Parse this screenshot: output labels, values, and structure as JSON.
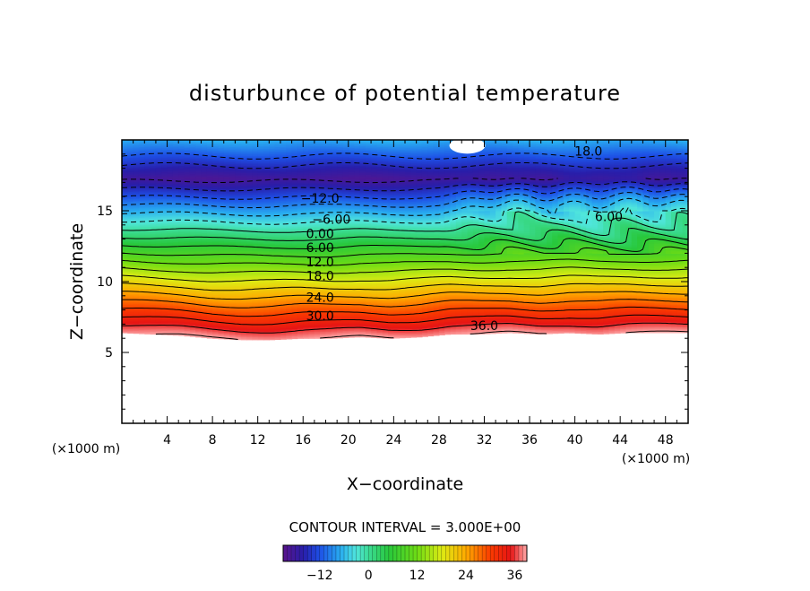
{
  "chart_data": {
    "type": "heatmap",
    "title": "disturbunce of potential temperature",
    "xlabel": "X−coordinate",
    "ylabel": "Z−coordinate",
    "x_unit": "(×1000 m)",
    "y_unit": "(×1000 m)",
    "xlim": [
      0,
      50
    ],
    "ylim": [
      0,
      20
    ],
    "x_ticks": [
      4,
      8,
      12,
      16,
      20,
      24,
      28,
      32,
      36,
      40,
      44,
      48
    ],
    "y_ticks": [
      5,
      10,
      15
    ],
    "contour_interval_text": "CONTOUR INTERVAL = 3.000E+00",
    "value_range": [
      -21,
      39
    ],
    "surface_height": [
      6.4,
      6.3,
      6.2,
      6.0,
      5.9,
      5.9,
      6.0,
      6.0,
      6.1,
      6.0,
      6.1,
      6.3,
      6.3,
      6.4,
      6.3,
      6.4,
      6.3,
      6.4,
      6.4,
      6.4
    ],
    "contour_labels": [
      {
        "text": "18.0",
        "x": 41.2,
        "y": 19.2
      },
      {
        "text": "−12.0",
        "x": 17.5,
        "y": 15.9
      },
      {
        "text": "−6.00",
        "x": 18.5,
        "y": 14.4
      },
      {
        "text": "0.00",
        "x": 17.5,
        "y": 13.4
      },
      {
        "text": "6.00",
        "x": 17.5,
        "y": 12.4
      },
      {
        "text": "12.0",
        "x": 17.5,
        "y": 11.4
      },
      {
        "text": "18.0",
        "x": 17.5,
        "y": 10.4
      },
      {
        "text": "24.0",
        "x": 17.5,
        "y": 8.9
      },
      {
        "text": "30.0",
        "x": 17.5,
        "y": 7.6
      },
      {
        "text": "36.0",
        "x": 32.0,
        "y": 6.9
      },
      {
        "text": "6.00",
        "x": 43.0,
        "y": 14.6
      }
    ],
    "colorbar": {
      "min": -21,
      "max": 39,
      "ticks": [
        -12,
        0,
        12,
        24,
        36
      ],
      "tick_labels": [
        "−12",
        "0",
        "12",
        "24",
        "36"
      ]
    }
  }
}
